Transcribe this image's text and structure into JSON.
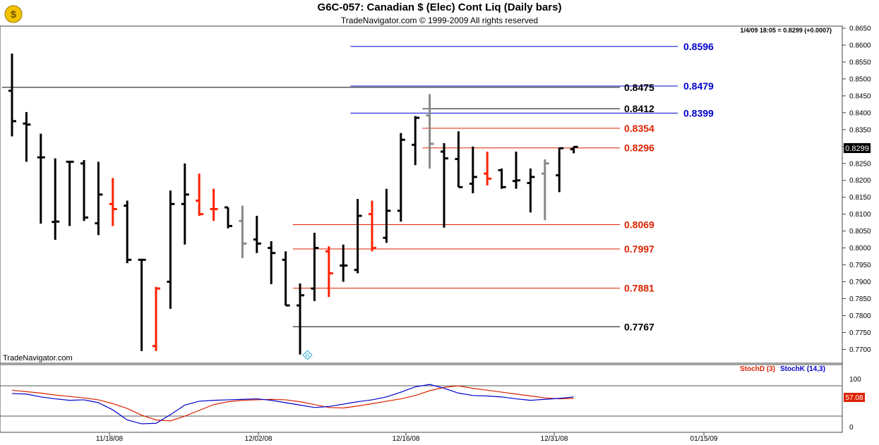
{
  "header": {
    "title": "G6C-057:  Canadian $ (Elec) Cont Liq  (Daily bars)",
    "subtitle": "TradeNavigator.com © 1999-2009 All rights reserved",
    "quote": "1/4/09 18:05 = 0.8299 (+0.0007)",
    "watermark": "TradeNavigator.com",
    "current_price_tag": "0.8299"
  },
  "colors": {
    "up": "#000000",
    "down": "#ff2200",
    "inside": "#888888",
    "blue_level": "#0000cc",
    "red_level": "#dd2200",
    "stoch_d": "#dd2200",
    "stoch_k": "#0000cc"
  },
  "chart_data": [
    {
      "type": "ohlc",
      "name": "price",
      "x_dates": [
        "11/18/08",
        "12/02/08",
        "12/16/08",
        "12/31/08",
        "01/15/09"
      ],
      "ylim": [
        0.768,
        0.865
      ],
      "y_ticks": [
        0.77,
        0.775,
        0.78,
        0.785,
        0.79,
        0.795,
        0.8,
        0.805,
        0.81,
        0.815,
        0.82,
        0.825,
        0.83,
        0.835,
        0.84,
        0.845,
        0.85,
        0.855,
        0.86,
        0.865
      ],
      "bars": [
        {
          "o": 0.8465,
          "h": 0.8575,
          "l": 0.833,
          "c": 0.8375,
          "col": "black"
        },
        {
          "o": 0.8368,
          "h": 0.8402,
          "l": 0.8255,
          "c": 0.8365,
          "col": "black"
        },
        {
          "o": 0.8268,
          "h": 0.8338,
          "l": 0.8072,
          "c": 0.8268,
          "col": "black"
        },
        {
          "o": 0.8077,
          "h": 0.8265,
          "l": 0.8024,
          "c": 0.8078,
          "col": "black"
        },
        {
          "o": 0.8255,
          "h": 0.8255,
          "l": 0.8065,
          "c": 0.8255,
          "col": "black"
        },
        {
          "o": 0.825,
          "h": 0.826,
          "l": 0.808,
          "c": 0.809,
          "col": "black"
        },
        {
          "o": 0.8073,
          "h": 0.8255,
          "l": 0.8038,
          "c": 0.8158,
          "col": "black"
        },
        {
          "o": 0.813,
          "h": 0.8207,
          "l": 0.8065,
          "c": 0.8115,
          "col": "red"
        },
        {
          "o": 0.8125,
          "h": 0.814,
          "l": 0.7955,
          "c": 0.7965,
          "col": "black"
        },
        {
          "o": 0.7965,
          "h": 0.7965,
          "l": 0.7695,
          "c": 0.7965,
          "col": "black"
        },
        {
          "o": 0.771,
          "h": 0.7885,
          "l": 0.7695,
          "c": 0.788,
          "col": "red"
        },
        {
          "o": 0.79,
          "h": 0.817,
          "l": 0.782,
          "c": 0.813,
          "col": "black"
        },
        {
          "o": 0.813,
          "h": 0.825,
          "l": 0.801,
          "c": 0.8158,
          "col": "black"
        },
        {
          "o": 0.814,
          "h": 0.822,
          "l": 0.8095,
          "c": 0.81,
          "col": "red"
        },
        {
          "o": 0.8115,
          "h": 0.8175,
          "l": 0.808,
          "c": 0.8115,
          "col": "red"
        },
        {
          "o": 0.812,
          "h": 0.812,
          "l": 0.8058,
          "c": 0.8065,
          "col": "black"
        },
        {
          "o": 0.808,
          "h": 0.8125,
          "l": 0.797,
          "c": 0.8013,
          "col": "grey"
        },
        {
          "o": 0.8025,
          "h": 0.8095,
          "l": 0.7985,
          "c": 0.8013,
          "col": "black"
        },
        {
          "o": 0.8,
          "h": 0.802,
          "l": 0.7893,
          "c": 0.7985,
          "col": "black"
        },
        {
          "o": 0.7965,
          "h": 0.799,
          "l": 0.783,
          "c": 0.783,
          "col": "black"
        },
        {
          "o": 0.783,
          "h": 0.7895,
          "l": 0.7685,
          "c": 0.786,
          "col": "black"
        },
        {
          "o": 0.788,
          "h": 0.8045,
          "l": 0.7843,
          "c": 0.8,
          "col": "black"
        },
        {
          "o": 0.799,
          "h": 0.8005,
          "l": 0.7855,
          "c": 0.7925,
          "col": "red"
        },
        {
          "o": 0.7948,
          "h": 0.801,
          "l": 0.79,
          "c": 0.7948,
          "col": "black"
        },
        {
          "o": 0.7935,
          "h": 0.8145,
          "l": 0.7925,
          "c": 0.8095,
          "col": "black"
        },
        {
          "o": 0.81,
          "h": 0.814,
          "l": 0.799,
          "c": 0.8,
          "col": "red"
        },
        {
          "o": 0.803,
          "h": 0.8175,
          "l": 0.8015,
          "c": 0.811,
          "col": "black"
        },
        {
          "o": 0.811,
          "h": 0.834,
          "l": 0.8078,
          "c": 0.832,
          "col": "black"
        },
        {
          "o": 0.8305,
          "h": 0.839,
          "l": 0.8245,
          "c": 0.8385,
          "col": "black"
        },
        {
          "o": 0.8392,
          "h": 0.8455,
          "l": 0.8235,
          "c": 0.8308,
          "col": "grey"
        },
        {
          "o": 0.8285,
          "h": 0.831,
          "l": 0.806,
          "c": 0.8265,
          "col": "black"
        },
        {
          "o": 0.8263,
          "h": 0.8345,
          "l": 0.818,
          "c": 0.818,
          "col": "black"
        },
        {
          "o": 0.819,
          "h": 0.83,
          "l": 0.8162,
          "c": 0.821,
          "col": "black"
        },
        {
          "o": 0.822,
          "h": 0.8285,
          "l": 0.8185,
          "c": 0.8205,
          "col": "red"
        },
        {
          "o": 0.823,
          "h": 0.8235,
          "l": 0.8175,
          "c": 0.818,
          "col": "black"
        },
        {
          "o": 0.8198,
          "h": 0.8285,
          "l": 0.8175,
          "c": 0.82,
          "col": "black"
        },
        {
          "o": 0.8192,
          "h": 0.8235,
          "l": 0.8105,
          "c": 0.821,
          "col": "black"
        },
        {
          "o": 0.822,
          "h": 0.8262,
          "l": 0.8082,
          "c": 0.825,
          "col": "grey"
        },
        {
          "o": 0.8215,
          "h": 0.8297,
          "l": 0.8165,
          "c": 0.8295,
          "col": "black"
        },
        {
          "o": 0.8292,
          "h": 0.83,
          "l": 0.828,
          "c": 0.8299,
          "col": "black"
        }
      ]
    },
    {
      "type": "line",
      "name": "stochastic",
      "ylim": [
        0,
        100
      ],
      "y_ticks": [
        0,
        100
      ],
      "legend": [
        "StochD (3)",
        "StochK (14,3)"
      ],
      "series": [
        {
          "name": "StochD (3)",
          "values": [
            76,
            73,
            70,
            66,
            63,
            60,
            56,
            48,
            38,
            24,
            14,
            12,
            22,
            34,
            46,
            52,
            55,
            56,
            57,
            56,
            52,
            46,
            40,
            39,
            43,
            48,
            53,
            58,
            65,
            75,
            82,
            85,
            80,
            76,
            72,
            68,
            64,
            60,
            58,
            59
          ]
        },
        {
          "name": "StochK (14,3)",
          "values": [
            69,
            68,
            62,
            58,
            55,
            56,
            50,
            35,
            14,
            6,
            7,
            25,
            45,
            53,
            55,
            56,
            57,
            58,
            55,
            50,
            45,
            40,
            42,
            47,
            52,
            56,
            62,
            72,
            83,
            88,
            80,
            70,
            65,
            64,
            62,
            58,
            55,
            57,
            59,
            62
          ]
        }
      ],
      "price_tag": "57.08"
    }
  ],
  "levels": [
    {
      "value": "0.8596",
      "y": 0.8596,
      "color": "blue",
      "x_start_bar": 23.5,
      "label_x": 968
    },
    {
      "value": "0.8479",
      "y": 0.8479,
      "color": "blue",
      "x_start_bar": 23.5,
      "label_x": 968
    },
    {
      "value": "0.8399",
      "y": 0.8399,
      "color": "blue",
      "x_start_bar": 23.5,
      "label_x": 968
    },
    {
      "value": "0.8475",
      "y": 0.8475,
      "color": "black",
      "x_start_bar": 0,
      "label_x": 884
    },
    {
      "value": "0.8412",
      "y": 0.8412,
      "color": "black",
      "x_start_bar": 28.5,
      "label_x": 884
    },
    {
      "value": "0.8354",
      "y": 0.8354,
      "color": "red",
      "x_start_bar": 28.5,
      "label_x": 884
    },
    {
      "value": "0.8296",
      "y": 0.8296,
      "color": "red",
      "x_start_bar": 28.5,
      "label_x": 884
    },
    {
      "value": "0.8069",
      "y": 0.8069,
      "color": "red",
      "x_start_bar": 19.5,
      "label_x": 884
    },
    {
      "value": "0.7997",
      "y": 0.7997,
      "color": "red",
      "x_start_bar": 19.5,
      "label_x": 884
    },
    {
      "value": "0.7881",
      "y": 0.7881,
      "color": "red",
      "x_start_bar": 19.5,
      "label_x": 884
    },
    {
      "value": "0.7767",
      "y": 0.7767,
      "color": "black",
      "x_start_bar": 19.5,
      "label_x": 884
    }
  ]
}
